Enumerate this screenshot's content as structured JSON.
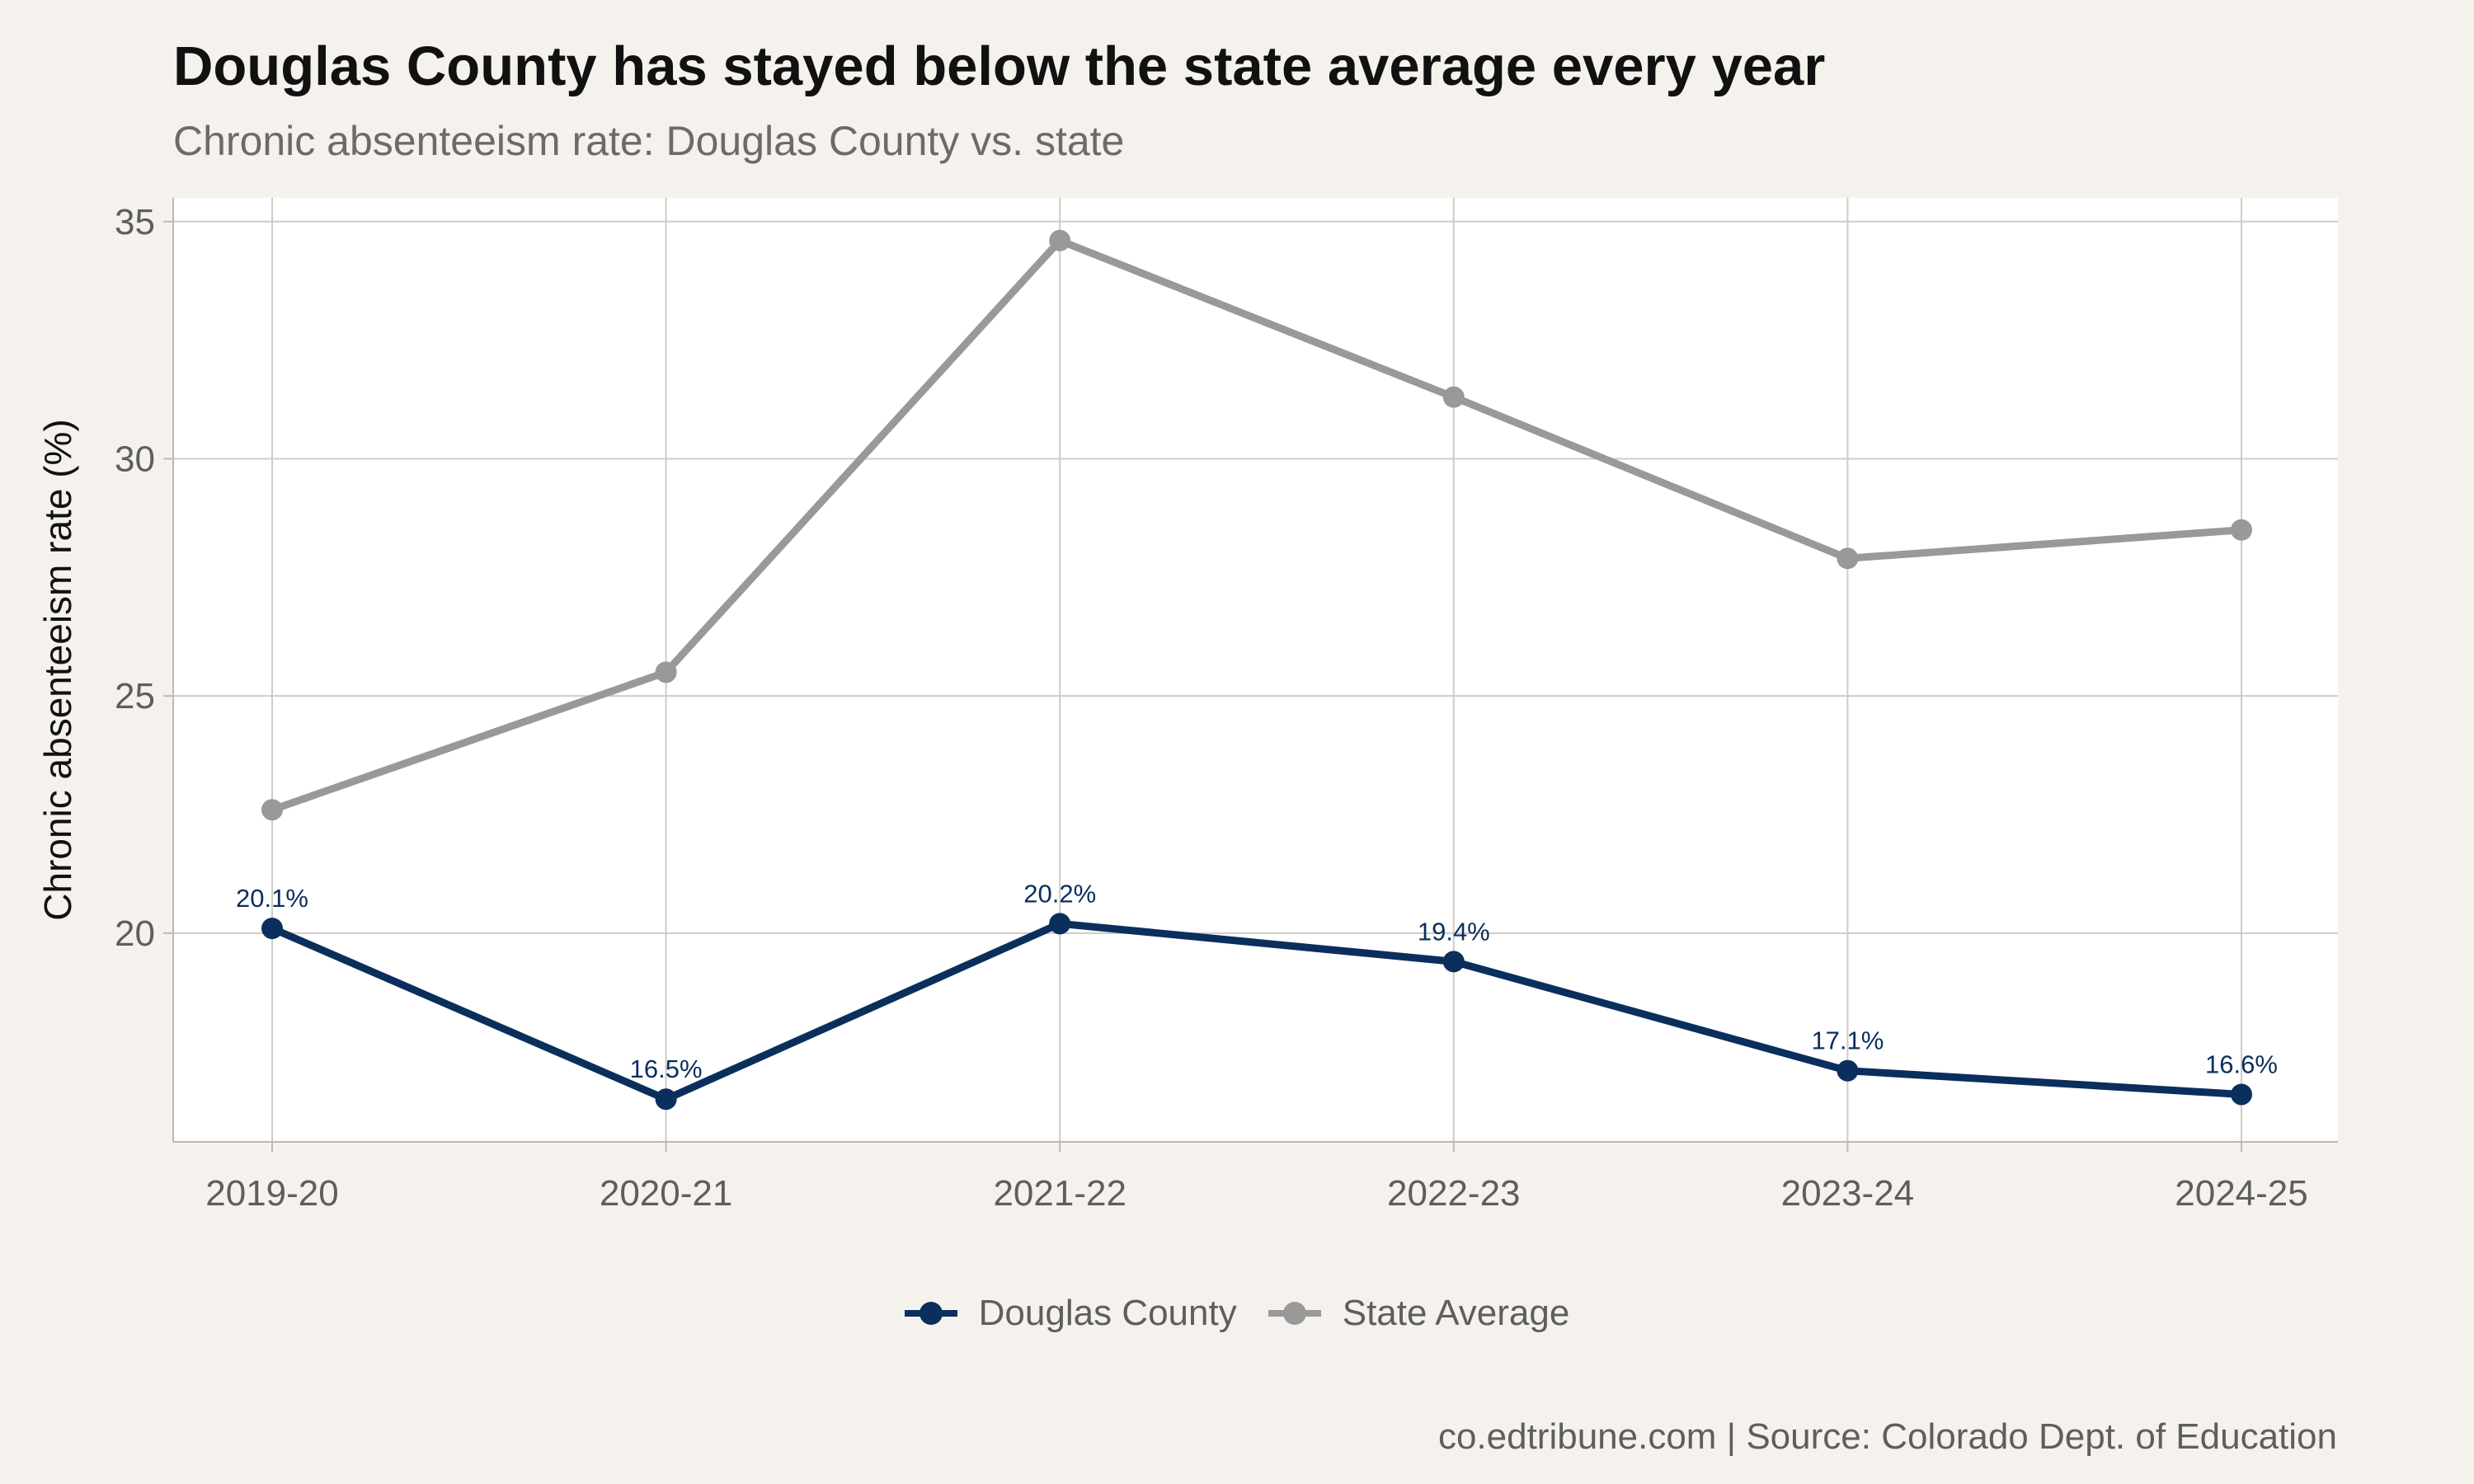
{
  "chart_data": {
    "type": "line",
    "title": "Douglas County has stayed below the state average every year",
    "subtitle": "Chronic absenteeism rate: Douglas County vs. state",
    "xlabel": "",
    "ylabel": "Chronic absenteeism rate (%)",
    "categories": [
      "2019-20",
      "2020-21",
      "2021-22",
      "2022-23",
      "2023-24",
      "2024-25"
    ],
    "ylim": [
      15.6,
      35.5
    ],
    "yticks": [
      20,
      25,
      30,
      35
    ],
    "grid": true,
    "legend_position": "bottom",
    "series": [
      {
        "name": "Douglas County",
        "color": "#0a2f5c",
        "values": [
          20.1,
          16.5,
          20.2,
          19.4,
          17.1,
          16.6
        ],
        "labels": [
          "20.1%",
          "16.5%",
          "20.2%",
          "19.4%",
          "17.1%",
          "16.6%"
        ]
      },
      {
        "name": "State Average",
        "color": "#999999",
        "values": [
          22.6,
          25.5,
          34.6,
          31.3,
          27.9,
          28.5
        ]
      }
    ],
    "caption": "co.edtribune.com | Source: Colorado Dept. of Education"
  }
}
